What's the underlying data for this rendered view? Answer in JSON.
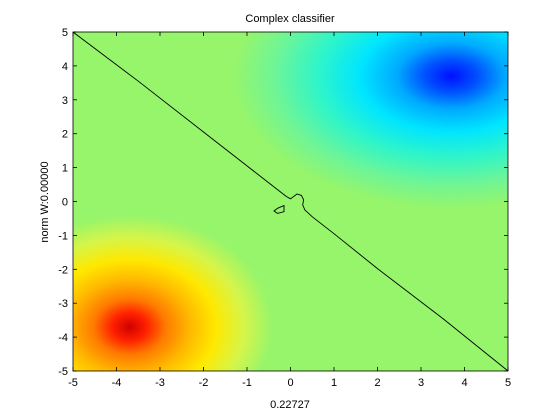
{
  "chart_data": {
    "type": "heatmap",
    "title": "Complex classifier",
    "xlabel": "0.22727",
    "ylabel": "norm W:0.00000",
    "xlim": [
      -5,
      5
    ],
    "ylim": [
      -5,
      5
    ],
    "xticks": [
      -5,
      -4,
      -3,
      -2,
      -1,
      0,
      1,
      2,
      3,
      4,
      5
    ],
    "yticks": [
      -5,
      -4,
      -3,
      -2,
      -1,
      0,
      1,
      2,
      3,
      4,
      5
    ],
    "grid": false,
    "background_color": "#96f56b",
    "peaks": [
      {
        "x": 3.7,
        "y": 3.7,
        "sign": -1,
        "color_center": "#0010ff",
        "color_mid": "#00e5ff"
      },
      {
        "x": -3.7,
        "y": -3.7,
        "sign": 1,
        "color_center": "#d00000",
        "color_mid": "#ffe800"
      }
    ],
    "decision_boundary": {
      "color": "#000000",
      "path": [
        [
          -5,
          5
        ],
        [
          -3.5,
          3.55
        ],
        [
          -2.0,
          2.05
        ],
        [
          -1.0,
          1.05
        ],
        [
          -0.45,
          0.5
        ],
        [
          -0.1,
          0.15
        ],
        [
          0.0,
          0.08
        ],
        [
          0.15,
          0.22
        ],
        [
          0.25,
          0.18
        ],
        [
          0.3,
          0.05
        ],
        [
          0.28,
          -0.1
        ],
        [
          0.33,
          -0.25
        ],
        [
          0.5,
          -0.45
        ],
        [
          1.0,
          -0.95
        ],
        [
          2.0,
          -1.98
        ],
        [
          3.5,
          -3.45
        ],
        [
          5,
          -5
        ]
      ],
      "loop": [
        [
          -0.3,
          -0.2
        ],
        [
          -0.15,
          -0.12
        ],
        [
          -0.15,
          -0.3
        ],
        [
          -0.3,
          -0.35
        ],
        [
          -0.38,
          -0.28
        ],
        [
          -0.3,
          -0.2
        ]
      ]
    }
  }
}
